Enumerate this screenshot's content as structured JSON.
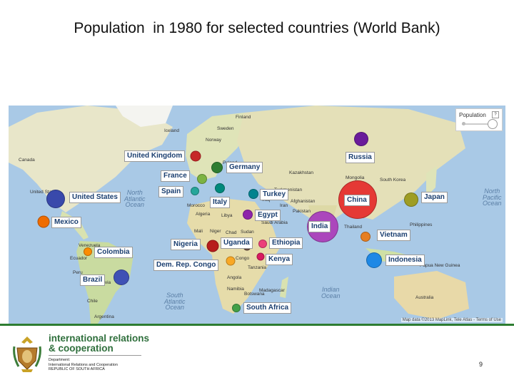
{
  "slide": {
    "title": "Population  in 1980 for selected countries (World Bank)",
    "page_number": "9"
  },
  "map": {
    "legend": {
      "title": "Population",
      "help": "?"
    },
    "attribution": "Map data ©2013 MapLink, Tele Atlas - Terms of Use",
    "country_labels": [
      {
        "id": "uk",
        "text": "United Kingdom"
      },
      {
        "id": "germany",
        "text": "Germany"
      },
      {
        "id": "france",
        "text": "France"
      },
      {
        "id": "spain",
        "text": "Spain"
      },
      {
        "id": "italy",
        "text": "Italy"
      },
      {
        "id": "russia",
        "text": "Russia"
      },
      {
        "id": "us",
        "text": "United States"
      },
      {
        "id": "mexico",
        "text": "Mexico"
      },
      {
        "id": "colombia",
        "text": "Colombia"
      },
      {
        "id": "brazil",
        "text": "Brazil"
      },
      {
        "id": "turkey",
        "text": "Turkey"
      },
      {
        "id": "egypt",
        "text": "Egypt"
      },
      {
        "id": "china",
        "text": "China"
      },
      {
        "id": "japan",
        "text": "Japan"
      },
      {
        "id": "india",
        "text": "India"
      },
      {
        "id": "vietnam",
        "text": "Vietnam"
      },
      {
        "id": "nigeria",
        "text": "Nigeria"
      },
      {
        "id": "uganda",
        "text": "Uganda"
      },
      {
        "id": "ethiopia",
        "text": "Ethiopia"
      },
      {
        "id": "kenya",
        "text": "Kenya"
      },
      {
        "id": "indonesia",
        "text": "Indonesia"
      },
      {
        "id": "drc",
        "text": "Dem. Rep. Congo"
      },
      {
        "id": "south_africa",
        "text": "South Africa"
      }
    ],
    "bubbles": [
      {
        "id": "uk",
        "color": "#c62828"
      },
      {
        "id": "germany",
        "color": "#2e7d32"
      },
      {
        "id": "france",
        "color": "#7cb342"
      },
      {
        "id": "spain",
        "color": "#26a69a"
      },
      {
        "id": "italy",
        "color": "#00897b"
      },
      {
        "id": "russia",
        "color": "#6a1b9a"
      },
      {
        "id": "us",
        "color": "#3949ab"
      },
      {
        "id": "mexico",
        "color": "#ef6c00"
      },
      {
        "id": "colombia",
        "color": "#fb8c00"
      },
      {
        "id": "brazil",
        "color": "#3f51b5"
      },
      {
        "id": "turkey",
        "color": "#00838f"
      },
      {
        "id": "egypt",
        "color": "#8e24aa"
      },
      {
        "id": "china",
        "color": "#e53935"
      },
      {
        "id": "japan",
        "color": "#9e9d24"
      },
      {
        "id": "india",
        "color": "#ab47bc"
      },
      {
        "id": "vietnam",
        "color": "#e67e22"
      },
      {
        "id": "nigeria",
        "color": "#b71c1c"
      },
      {
        "id": "uganda",
        "color": "#6d4c41"
      },
      {
        "id": "ethiopia",
        "color": "#ec407a"
      },
      {
        "id": "kenya",
        "color": "#d81b60"
      },
      {
        "id": "indonesia",
        "color": "#1e88e5"
      },
      {
        "id": "drc",
        "color": "#f9a825"
      },
      {
        "id": "south_africa",
        "color": "#43a047"
      }
    ],
    "place_labels": [
      "Finland",
      "Sweden",
      "Iceland",
      "Norway",
      "Canada",
      "United States",
      "Poland",
      "Ukraine",
      "Kazakhstan",
      "Mongolia",
      "Afghanistan",
      "Pakistan",
      "Iran",
      "Iraq",
      "Saudi Arabia",
      "Algeria",
      "Libya",
      "Mali",
      "Niger",
      "Chad",
      "Sudan",
      "Venezuela",
      "Peru",
      "Bolivia",
      "Chile",
      "Argentina",
      "Angola",
      "Namibia",
      "Botswana",
      "Madagascar",
      "Tanzania",
      "Australia",
      "Thailand",
      "South Korea",
      "Philippines",
      "Papua New Guinea",
      "Congo",
      "Turkmenistan",
      "Ecuador",
      "Morocco"
    ],
    "oceans": [
      {
        "id": "north_atlantic",
        "text": "North\nAtlantic\nOcean"
      },
      {
        "id": "south_atlantic",
        "text": "South\nAtlantic\nOcean"
      },
      {
        "id": "indian",
        "text": "Indian\nOcean"
      },
      {
        "id": "north_pacific",
        "text": "North\nPacific\nOcean"
      }
    ]
  },
  "department": {
    "title": "international relations\n& cooperation",
    "subtitle": "Department:\nInternational Relations and Cooperation\nREPUBLIC OF SOUTH AFRICA"
  }
}
